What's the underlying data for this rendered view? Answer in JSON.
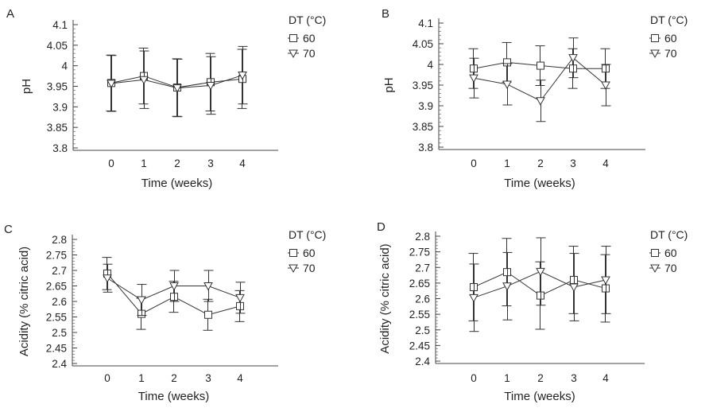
{
  "legend_title": "DT (°C)",
  "chart_data": [
    {
      "panel": "A",
      "type": "line",
      "xlabel": "Time (weeks)",
      "ylabel": "pH",
      "categories": [
        0,
        1,
        2,
        3,
        4
      ],
      "yticks": [
        "3.8",
        "3.85",
        "3.9",
        "3.95",
        "4",
        "4.05",
        "4.1"
      ],
      "ylim": [
        3.8,
        4.1
      ],
      "series": [
        {
          "name": "60",
          "marker": "square",
          "values": [
            3.958,
            3.975,
            3.947,
            3.96,
            3.968
          ],
          "err": [
            0.068,
            0.068,
            0.07,
            0.07,
            0.072
          ]
        },
        {
          "name": "70",
          "marker": "triangle-down",
          "values": [
            3.957,
            3.966,
            3.946,
            3.952,
            3.977
          ],
          "err": [
            0.068,
            0.07,
            0.07,
            0.07,
            0.07
          ]
        }
      ],
      "legend": "top-right"
    },
    {
      "panel": "B",
      "type": "line",
      "xlabel": "Time (weeks)",
      "ylabel": "pH",
      "categories": [
        0,
        1,
        2,
        3,
        4
      ],
      "yticks": [
        "3.8",
        "3.85",
        "3.9",
        "3.95",
        "4",
        "4.05",
        "4.1"
      ],
      "ylim": [
        3.8,
        4.1
      ],
      "series": [
        {
          "name": "60",
          "marker": "square",
          "values": [
            3.99,
            4.005,
            3.997,
            3.99,
            3.99
          ],
          "err": [
            0.048,
            0.048,
            0.048,
            0.048,
            0.048
          ]
        },
        {
          "name": "70",
          "marker": "triangle-down",
          "values": [
            3.967,
            3.952,
            3.912,
            4.016,
            3.95
          ],
          "err": [
            0.048,
            0.05,
            0.05,
            0.048,
            0.05
          ]
        }
      ],
      "legend": "top-right"
    },
    {
      "panel": "C",
      "type": "line",
      "xlabel": "Time (weeks)",
      "ylabel": "Acidity (% citric acid)",
      "categories": [
        0,
        1,
        2,
        3,
        4
      ],
      "yticks": [
        "2.4",
        "2.45",
        "2.5",
        "2.55",
        "2.6",
        "2.65",
        "2.7",
        "2.75",
        "2.8"
      ],
      "ylim": [
        2.4,
        2.8
      ],
      "series": [
        {
          "name": "60",
          "marker": "square",
          "values": [
            2.69,
            2.56,
            2.615,
            2.557,
            2.585
          ],
          "err": [
            0.052,
            0.05,
            0.05,
            0.05,
            0.05
          ]
        },
        {
          "name": "70",
          "marker": "triangle-down",
          "values": [
            2.675,
            2.605,
            2.65,
            2.65,
            2.612
          ],
          "err": [
            0.045,
            0.05,
            0.05,
            0.05,
            0.05
          ]
        }
      ],
      "legend": "top-right"
    },
    {
      "panel": "D",
      "type": "line",
      "xlabel": "Time (weeks)",
      "ylabel": "Acidity (% citric acid)",
      "categories": [
        0,
        1,
        2,
        3,
        4
      ],
      "yticks": [
        "2.4",
        "2.45",
        "2.5",
        "2.55",
        "2.6",
        "2.65",
        "2.7",
        "2.75",
        "2.8"
      ],
      "ylim": [
        2.4,
        2.8
      ],
      "series": [
        {
          "name": "60",
          "marker": "square",
          "values": [
            2.637,
            2.685,
            2.61,
            2.66,
            2.633
          ],
          "err": [
            0.108,
            0.108,
            0.108,
            0.108,
            0.108
          ]
        },
        {
          "name": "70",
          "marker": "triangle-down",
          "values": [
            2.603,
            2.64,
            2.687,
            2.637,
            2.66
          ],
          "err": [
            0.108,
            0.108,
            0.108,
            0.108,
            0.108
          ]
        }
      ],
      "legend": "top-right"
    }
  ]
}
